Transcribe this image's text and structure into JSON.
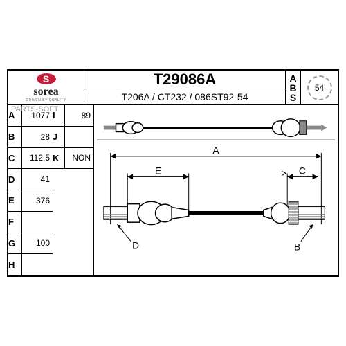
{
  "logo": {
    "brand": "sorea",
    "tagline": "DRIVEN BY QUALITY",
    "letter": "S",
    "color": "#c41e3a"
  },
  "title": "T29086A",
  "subtitle": "T206A / CT232 / 086ST92-54",
  "abs": {
    "label": "ABS",
    "teeth": "54"
  },
  "specs_left": [
    {
      "k": "A",
      "v": "1077"
    },
    {
      "k": "B",
      "v": "28"
    },
    {
      "k": "C",
      "v": "112,5"
    },
    {
      "k": "D",
      "v": "41"
    },
    {
      "k": "E",
      "v": "376"
    },
    {
      "k": "F",
      "v": ""
    },
    {
      "k": "G",
      "v": "100"
    },
    {
      "k": "H",
      "v": ""
    }
  ],
  "specs_right": [
    {
      "k": "I",
      "v": "89"
    },
    {
      "k": "J",
      "v": ""
    },
    {
      "k": "K",
      "v": "NON"
    }
  ],
  "watermark": "PARTS-SOFT",
  "diagram": {
    "dims": {
      "A": "A",
      "B": "B",
      "C": "C",
      "D": "D",
      "E": "E"
    }
  }
}
